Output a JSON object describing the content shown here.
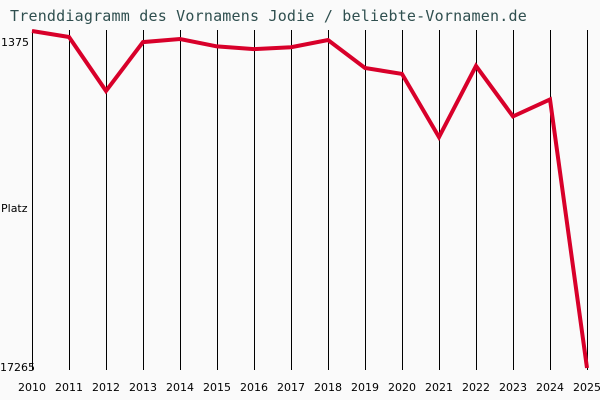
{
  "title": "Trenddiagramm des Vornamens Jodie / beliebte-Vornamen.de",
  "y_axis": {
    "top_label": "1375",
    "mid_label": "Platz",
    "bottom_label": "17265"
  },
  "colors": {
    "line": "#d8002a",
    "grid": "#000000",
    "title": "#2f4f4f",
    "background": "#fafafa"
  },
  "chart_data": {
    "type": "line",
    "title": "Trenddiagramm des Vornamens Jodie / beliebte-Vornamen.de",
    "xlabel": "",
    "ylabel": "Platz",
    "y_inverted": true,
    "ylim": [
      1375,
      17265
    ],
    "grid": "vertical",
    "categories": [
      "2010",
      "2011",
      "2012",
      "2013",
      "2014",
      "2015",
      "2016",
      "2017",
      "2018",
      "2019",
      "2020",
      "2021",
      "2022",
      "2023",
      "2024",
      "2025"
    ],
    "series": [
      {
        "name": "Jodie",
        "values": [
          1375,
          1660,
          4200,
          1900,
          1750,
          2100,
          2230,
          2140,
          1800,
          3120,
          3400,
          6380,
          3020,
          5400,
          4600,
          17265
        ]
      }
    ]
  }
}
